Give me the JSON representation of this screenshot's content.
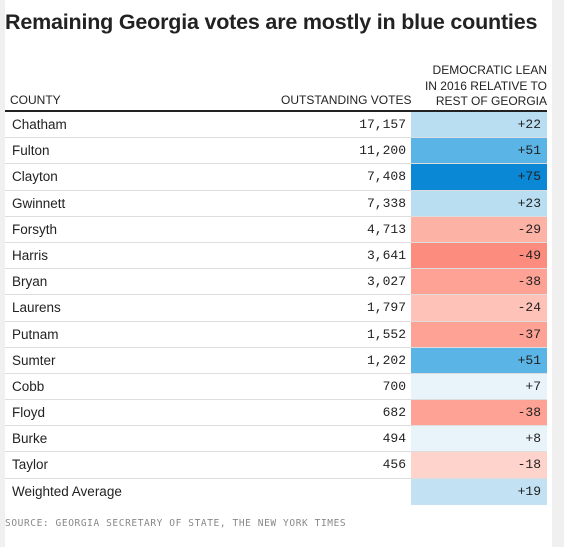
{
  "title": "Remaining Georgia votes are mostly in blue counties",
  "headers": {
    "county": "COUNTY",
    "votes": "OUTSTANDING VOTES",
    "lean_line1": "DEMOCRATIC LEAN",
    "lean_line2": "IN 2016 RELATIVE TO",
    "lean_line3": "REST OF GEORGIA"
  },
  "rows": [
    {
      "county": "Chatham",
      "votes": "17,157",
      "lean": "+22",
      "color": "#b9ddf1"
    },
    {
      "county": "Fulton",
      "votes": "11,200",
      "lean": "+51",
      "color": "#5ab4e5"
    },
    {
      "county": "Clayton",
      "votes": "7,408",
      "lean": "+75",
      "color": "#0a88d6"
    },
    {
      "county": "Gwinnett",
      "votes": "7,338",
      "lean": "+23",
      "color": "#b9ddf1"
    },
    {
      "county": "Forsyth",
      "votes": "4,713",
      "lean": "-29",
      "color": "#fdb2a6"
    },
    {
      "county": "Harris",
      "votes": "3,641",
      "lean": "-49",
      "color": "#fc8d7e"
    },
    {
      "county": "Bryan",
      "votes": "3,027",
      "lean": "-38",
      "color": "#fda294"
    },
    {
      "county": "Laurens",
      "votes": "1,797",
      "lean": "-24",
      "color": "#fec2b8"
    },
    {
      "county": "Putnam",
      "votes": "1,552",
      "lean": "-37",
      "color": "#fda294"
    },
    {
      "county": "Sumter",
      "votes": "1,202",
      "lean": "+51",
      "color": "#5ab4e5"
    },
    {
      "county": "Cobb",
      "votes": "700",
      "lean": "+7",
      "color": "#e8f3fa"
    },
    {
      "county": "Floyd",
      "votes": "682",
      "lean": "-38",
      "color": "#fda294"
    },
    {
      "county": "Burke",
      "votes": "494",
      "lean": "+8",
      "color": "#e8f3fa"
    },
    {
      "county": "Taylor",
      "votes": "456",
      "lean": "-18",
      "color": "#fed3cc"
    },
    {
      "county": "Weighted Average",
      "votes": "",
      "lean": "+19",
      "color": "#c2e1f3"
    }
  ],
  "source": "SOURCE: GEORGIA SECRETARY OF STATE, THE NEW YORK TIMES"
}
